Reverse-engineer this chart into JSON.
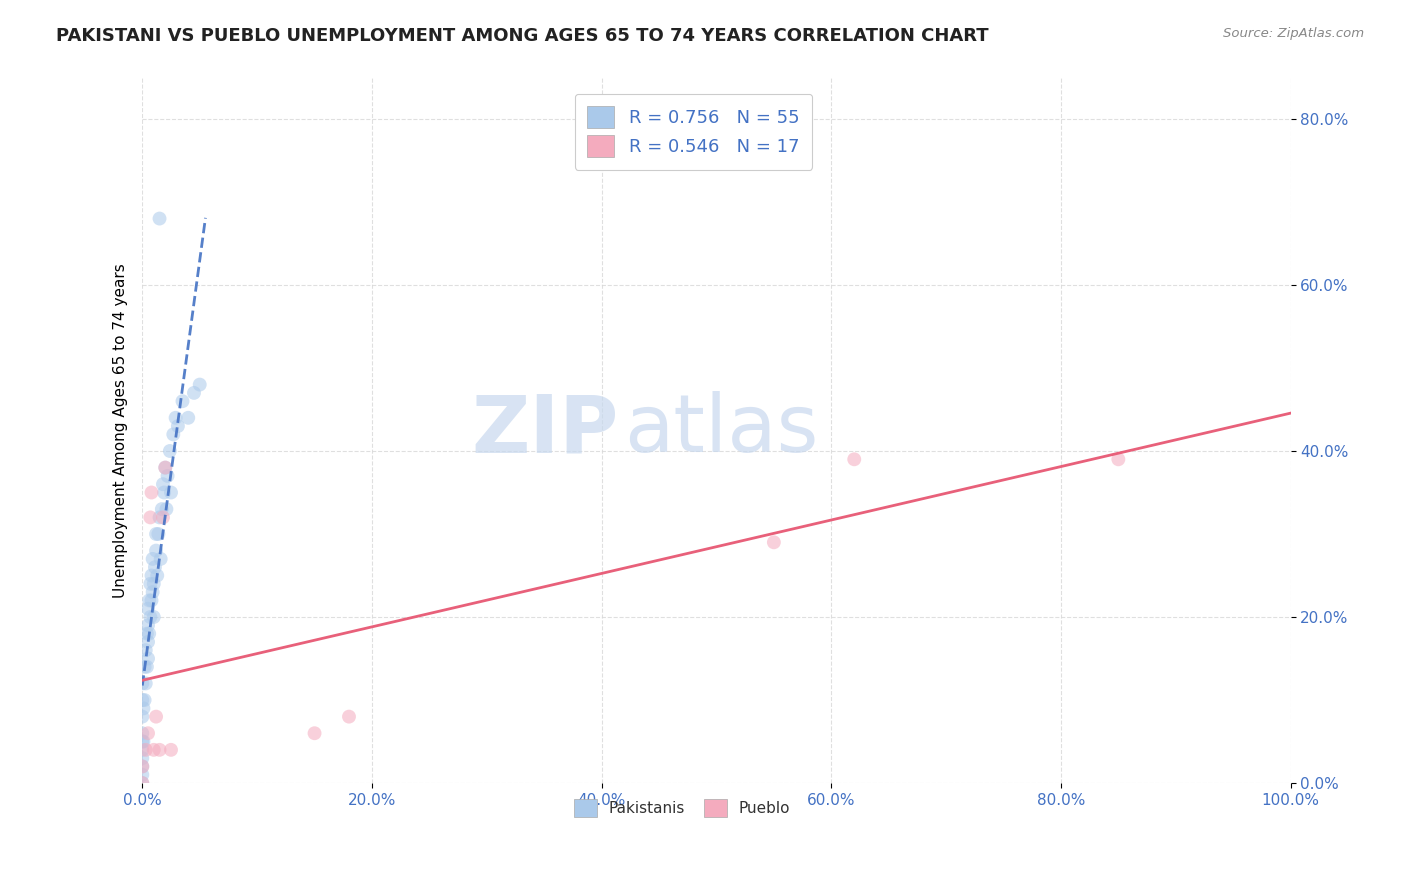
{
  "title": "PAKISTANI VS PUEBLO UNEMPLOYMENT AMONG AGES 65 TO 74 YEARS CORRELATION CHART",
  "source": "Source: ZipAtlas.com",
  "ylabel": "Unemployment Among Ages 65 to 74 years",
  "xlim": [
    0,
    1.0
  ],
  "ylim": [
    0,
    0.85
  ],
  "xticks": [
    0.0,
    0.2,
    0.4,
    0.6,
    0.8,
    1.0
  ],
  "xticklabels": [
    "0.0%",
    "20.0%",
    "40.0%",
    "60.0%",
    "80.0%",
    "100.0%"
  ],
  "yticks": [
    0.0,
    0.2,
    0.4,
    0.6,
    0.8
  ],
  "yticklabels": [
    "0.0%",
    "20.0%",
    "40.0%",
    "60.0%",
    "80.0%"
  ],
  "pakistani_color": "#aac9ea",
  "pueblo_color": "#f4abbe",
  "pakistani_R": 0.756,
  "pakistani_N": 55,
  "pueblo_R": 0.546,
  "pueblo_N": 17,
  "background_color": "#ffffff",
  "grid_color": "#d8d8d8",
  "pk_scatter_x": [
    0.0,
    0.0,
    0.0,
    0.0,
    0.0,
    0.0,
    0.0,
    0.0,
    0.0,
    0.0,
    0.001,
    0.001,
    0.002,
    0.002,
    0.003,
    0.003,
    0.004,
    0.004,
    0.005,
    0.005,
    0.005,
    0.005,
    0.006,
    0.006,
    0.007,
    0.007,
    0.008,
    0.008,
    0.009,
    0.009,
    0.01,
    0.01,
    0.011,
    0.012,
    0.012,
    0.013,
    0.014,
    0.015,
    0.015,
    0.016,
    0.017,
    0.018,
    0.019,
    0.02,
    0.021,
    0.022,
    0.024,
    0.025,
    0.027,
    0.029,
    0.031,
    0.035,
    0.04,
    0.045,
    0.05
  ],
  "pk_scatter_y": [
    0.0,
    0.01,
    0.02,
    0.03,
    0.04,
    0.05,
    0.06,
    0.08,
    0.1,
    0.12,
    0.05,
    0.09,
    0.1,
    0.14,
    0.12,
    0.16,
    0.14,
    0.18,
    0.15,
    0.17,
    0.19,
    0.21,
    0.18,
    0.22,
    0.2,
    0.24,
    0.22,
    0.25,
    0.23,
    0.27,
    0.2,
    0.24,
    0.26,
    0.28,
    0.3,
    0.25,
    0.3,
    0.68,
    0.32,
    0.27,
    0.33,
    0.36,
    0.35,
    0.38,
    0.33,
    0.37,
    0.4,
    0.35,
    0.42,
    0.44,
    0.43,
    0.46,
    0.44,
    0.47,
    0.48
  ],
  "pb_scatter_x": [
    0.0,
    0.0,
    0.003,
    0.005,
    0.007,
    0.008,
    0.01,
    0.012,
    0.015,
    0.018,
    0.02,
    0.025,
    0.15,
    0.18,
    0.55,
    0.62,
    0.85
  ],
  "pb_scatter_y": [
    0.0,
    0.02,
    0.04,
    0.06,
    0.32,
    0.35,
    0.04,
    0.08,
    0.04,
    0.32,
    0.38,
    0.04,
    0.06,
    0.08,
    0.29,
    0.39,
    0.39
  ],
  "pk_trend_color": "#4472c4",
  "pb_trend_color": "#e8607a",
  "marker_size": 100,
  "marker_alpha": 0.55,
  "title_fontsize": 13,
  "axis_label_fontsize": 11,
  "tick_fontsize": 11,
  "legend_fontsize": 13
}
